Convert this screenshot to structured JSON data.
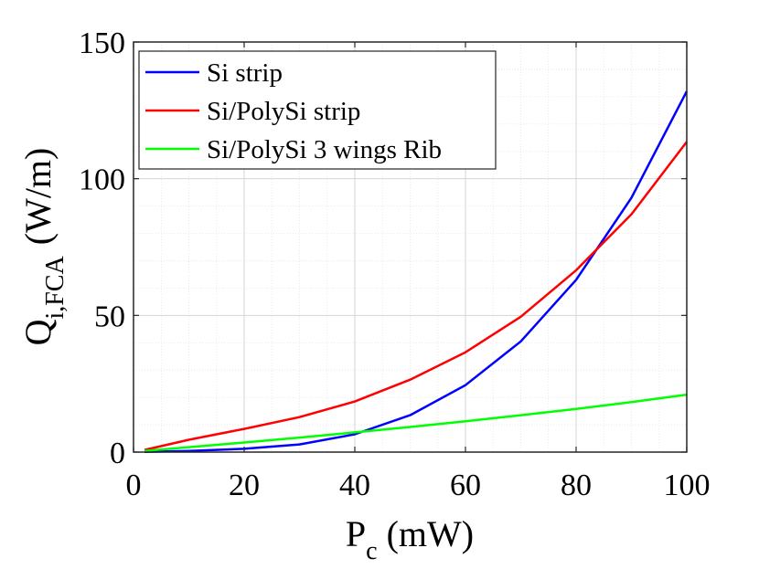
{
  "chart_data": {
    "type": "line",
    "title": "",
    "xlabel": {
      "main": "P",
      "sub": "c",
      "unit": "(mW)"
    },
    "ylabel": {
      "main": "Q",
      "sub": "i,FCA",
      "unit": "(W/m)"
    },
    "xlim": [
      0,
      100
    ],
    "ylim": [
      0,
      150
    ],
    "xticks": [
      0,
      20,
      40,
      60,
      80,
      100
    ],
    "yticks": [
      0,
      50,
      100,
      150
    ],
    "grid": true,
    "minor_grid": true,
    "legend_position": "top-left",
    "series": [
      {
        "name": "Si strip",
        "color": "#0000ff",
        "x": [
          2,
          10,
          20,
          30,
          40,
          50,
          60,
          70,
          80,
          90,
          100
        ],
        "y": [
          0.1,
          0.4,
          1.2,
          2.8,
          6.5,
          13.5,
          24.5,
          40.5,
          63,
          93,
          132
        ]
      },
      {
        "name": "Si/PolySi strip",
        "color": "#ff0000",
        "x": [
          2,
          10,
          20,
          30,
          40,
          50,
          60,
          70,
          80,
          90,
          100
        ],
        "y": [
          0.8,
          4.5,
          8.5,
          12.8,
          18.5,
          26.5,
          36.5,
          49.5,
          66.5,
          87,
          113.5
        ]
      },
      {
        "name": "Si/PolySi 3 wings Rib",
        "color": "#00ff00",
        "x": [
          2,
          10,
          20,
          30,
          40,
          50,
          60,
          70,
          80,
          90,
          100
        ],
        "y": [
          0.4,
          1.8,
          3.5,
          5.3,
          7.2,
          9.2,
          11.3,
          13.5,
          15.8,
          18.3,
          21
        ]
      }
    ]
  }
}
